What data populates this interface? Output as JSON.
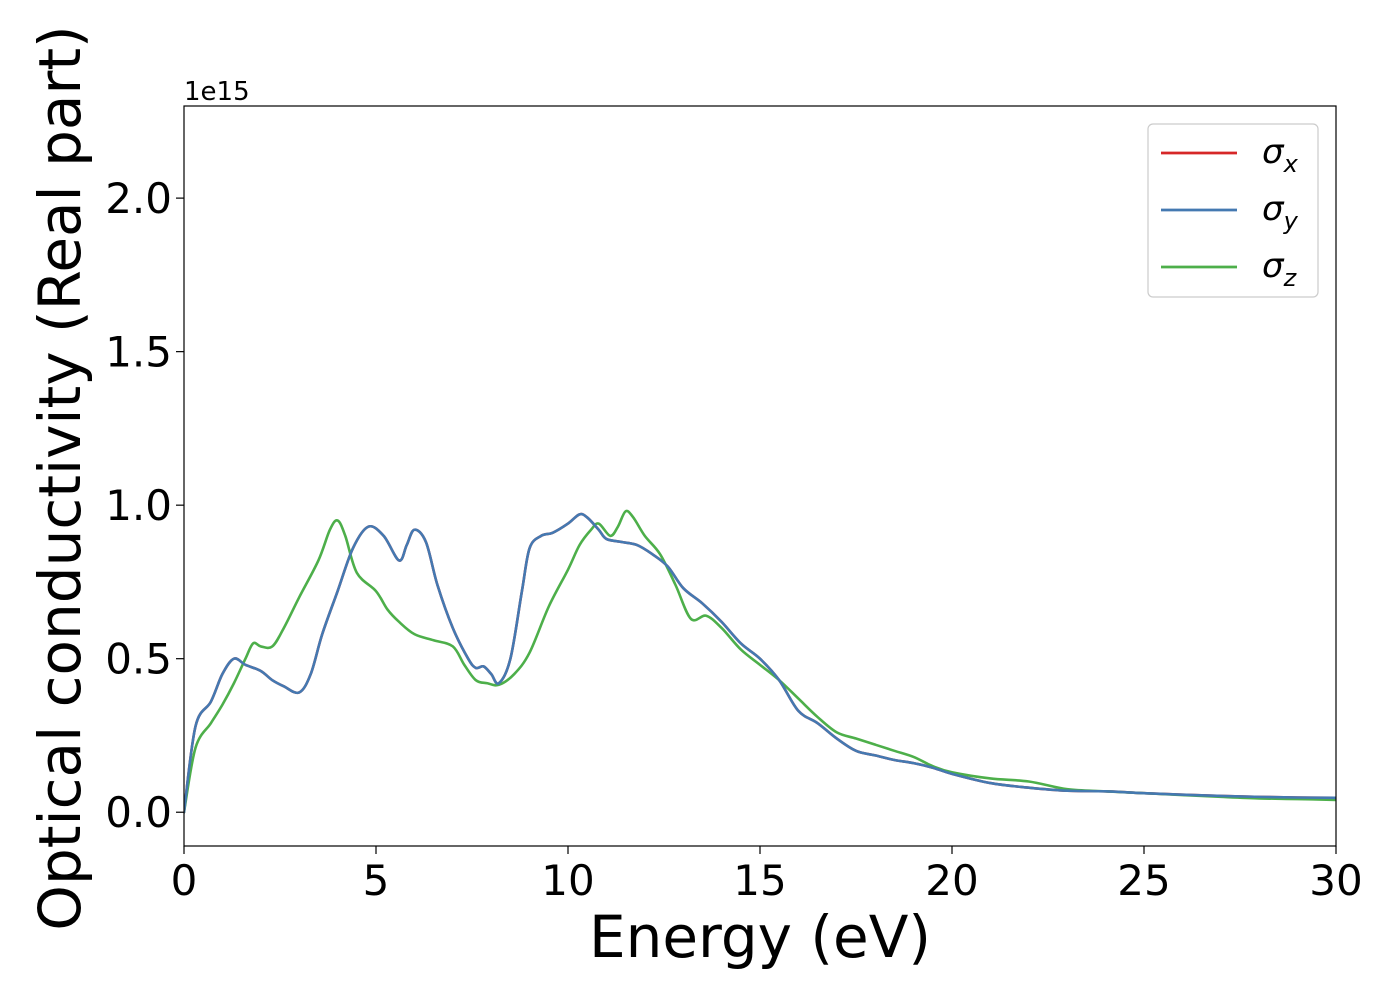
{
  "chart_data": {
    "type": "line",
    "title": "",
    "xlabel": "Energy (eV)",
    "ylabel": "Optical conductivity (Real part)",
    "offset_text": "1e15",
    "xlim": [
      0,
      30
    ],
    "ylim": [
      -0.11,
      2.3
    ],
    "x_ticks": [
      0,
      5,
      10,
      15,
      20,
      25,
      30
    ],
    "x_tick_labels": [
      "0",
      "5",
      "10",
      "15",
      "20",
      "25",
      "30"
    ],
    "y_ticks": [
      0.0,
      0.5,
      1.0,
      1.5,
      2.0
    ],
    "y_tick_labels": [
      "0.0",
      "0.5",
      "1.0",
      "1.5",
      "2.0"
    ],
    "grid": false,
    "legend_position": "top-right",
    "series": [
      {
        "name": "σ",
        "subscript": "x",
        "color": "#d62728",
        "x": [
          0,
          0.3,
          0.7,
          1.0,
          1.3,
          1.6,
          2.0,
          2.3,
          2.6,
          3.0,
          3.3,
          3.6,
          4.0,
          4.4,
          4.8,
          5.2,
          5.6,
          5.8,
          6.0,
          6.3,
          6.6,
          7.0,
          7.4,
          7.6,
          7.8,
          8.0,
          8.2,
          8.5,
          8.8,
          9.0,
          9.3,
          9.6,
          10.0,
          10.3,
          10.5,
          10.8,
          11.0,
          11.4,
          11.8,
          12.2,
          12.6,
          13.0,
          13.5,
          14.0,
          14.5,
          15.0,
          15.5,
          16.0,
          16.5,
          17.0,
          17.5,
          18.0,
          18.5,
          19.0,
          19.5,
          20.0,
          21.0,
          22.0,
          23.0,
          24.0,
          25.0,
          26.0,
          27.0,
          28.0,
          29.0,
          30.0
        ],
        "values": [
          0.0,
          0.28,
          0.36,
          0.45,
          0.5,
          0.48,
          0.46,
          0.43,
          0.41,
          0.39,
          0.45,
          0.58,
          0.72,
          0.86,
          0.93,
          0.9,
          0.82,
          0.87,
          0.92,
          0.88,
          0.74,
          0.6,
          0.5,
          0.47,
          0.475,
          0.45,
          0.42,
          0.5,
          0.72,
          0.86,
          0.9,
          0.91,
          0.94,
          0.97,
          0.96,
          0.92,
          0.89,
          0.88,
          0.87,
          0.84,
          0.8,
          0.73,
          0.68,
          0.62,
          0.55,
          0.5,
          0.43,
          0.33,
          0.29,
          0.24,
          0.2,
          0.185,
          0.17,
          0.16,
          0.145,
          0.125,
          0.095,
          0.08,
          0.07,
          0.068,
          0.062,
          0.057,
          0.053,
          0.05,
          0.048,
          0.047
        ]
      },
      {
        "name": "σ",
        "subscript": "y",
        "color": "#4479b1",
        "x": [
          0,
          0.3,
          0.7,
          1.0,
          1.3,
          1.6,
          2.0,
          2.3,
          2.6,
          3.0,
          3.3,
          3.6,
          4.0,
          4.4,
          4.8,
          5.2,
          5.6,
          5.8,
          6.0,
          6.3,
          6.6,
          7.0,
          7.4,
          7.6,
          7.8,
          8.0,
          8.2,
          8.5,
          8.8,
          9.0,
          9.3,
          9.6,
          10.0,
          10.3,
          10.5,
          10.8,
          11.0,
          11.4,
          11.8,
          12.2,
          12.6,
          13.0,
          13.5,
          14.0,
          14.5,
          15.0,
          15.5,
          16.0,
          16.5,
          17.0,
          17.5,
          18.0,
          18.5,
          19.0,
          19.5,
          20.0,
          21.0,
          22.0,
          23.0,
          24.0,
          25.0,
          26.0,
          27.0,
          28.0,
          29.0,
          30.0
        ],
        "values": [
          0.0,
          0.28,
          0.36,
          0.45,
          0.5,
          0.48,
          0.46,
          0.43,
          0.41,
          0.39,
          0.45,
          0.58,
          0.72,
          0.86,
          0.93,
          0.9,
          0.82,
          0.87,
          0.92,
          0.88,
          0.74,
          0.6,
          0.5,
          0.47,
          0.475,
          0.45,
          0.42,
          0.5,
          0.72,
          0.86,
          0.9,
          0.91,
          0.94,
          0.97,
          0.96,
          0.92,
          0.89,
          0.88,
          0.87,
          0.84,
          0.8,
          0.73,
          0.68,
          0.62,
          0.55,
          0.5,
          0.43,
          0.33,
          0.29,
          0.24,
          0.2,
          0.185,
          0.17,
          0.16,
          0.145,
          0.125,
          0.095,
          0.08,
          0.07,
          0.068,
          0.062,
          0.057,
          0.053,
          0.05,
          0.048,
          0.047
        ]
      },
      {
        "name": "σ",
        "subscript": "z",
        "color": "#4daf4a",
        "x": [
          0,
          0.3,
          0.7,
          1.0,
          1.3,
          1.6,
          1.8,
          2.0,
          2.3,
          2.6,
          3.0,
          3.5,
          3.8,
          4.0,
          4.2,
          4.5,
          5.0,
          5.3,
          5.6,
          6.0,
          6.5,
          7.0,
          7.3,
          7.6,
          7.9,
          8.2,
          8.6,
          9.0,
          9.5,
          10.0,
          10.3,
          10.6,
          10.8,
          11.1,
          11.3,
          11.5,
          11.7,
          12.0,
          12.4,
          12.8,
          13.2,
          13.6,
          14.0,
          14.5,
          15.0,
          15.5,
          16.0,
          16.5,
          17.0,
          17.5,
          18.0,
          18.5,
          19.0,
          19.5,
          20.0,
          21.0,
          22.0,
          23.0,
          24.0,
          25.0,
          26.0,
          27.0,
          28.0,
          29.0,
          30.0
        ],
        "values": [
          0.0,
          0.21,
          0.29,
          0.35,
          0.42,
          0.5,
          0.55,
          0.54,
          0.54,
          0.6,
          0.7,
          0.82,
          0.92,
          0.95,
          0.9,
          0.78,
          0.72,
          0.66,
          0.62,
          0.58,
          0.56,
          0.54,
          0.48,
          0.43,
          0.42,
          0.415,
          0.45,
          0.52,
          0.67,
          0.79,
          0.87,
          0.92,
          0.94,
          0.9,
          0.93,
          0.98,
          0.96,
          0.9,
          0.84,
          0.74,
          0.63,
          0.64,
          0.6,
          0.53,
          0.48,
          0.43,
          0.37,
          0.31,
          0.26,
          0.24,
          0.22,
          0.2,
          0.18,
          0.15,
          0.13,
          0.11,
          0.1,
          0.075,
          0.068,
          0.062,
          0.056,
          0.05,
          0.045,
          0.043,
          0.04
        ]
      }
    ]
  }
}
